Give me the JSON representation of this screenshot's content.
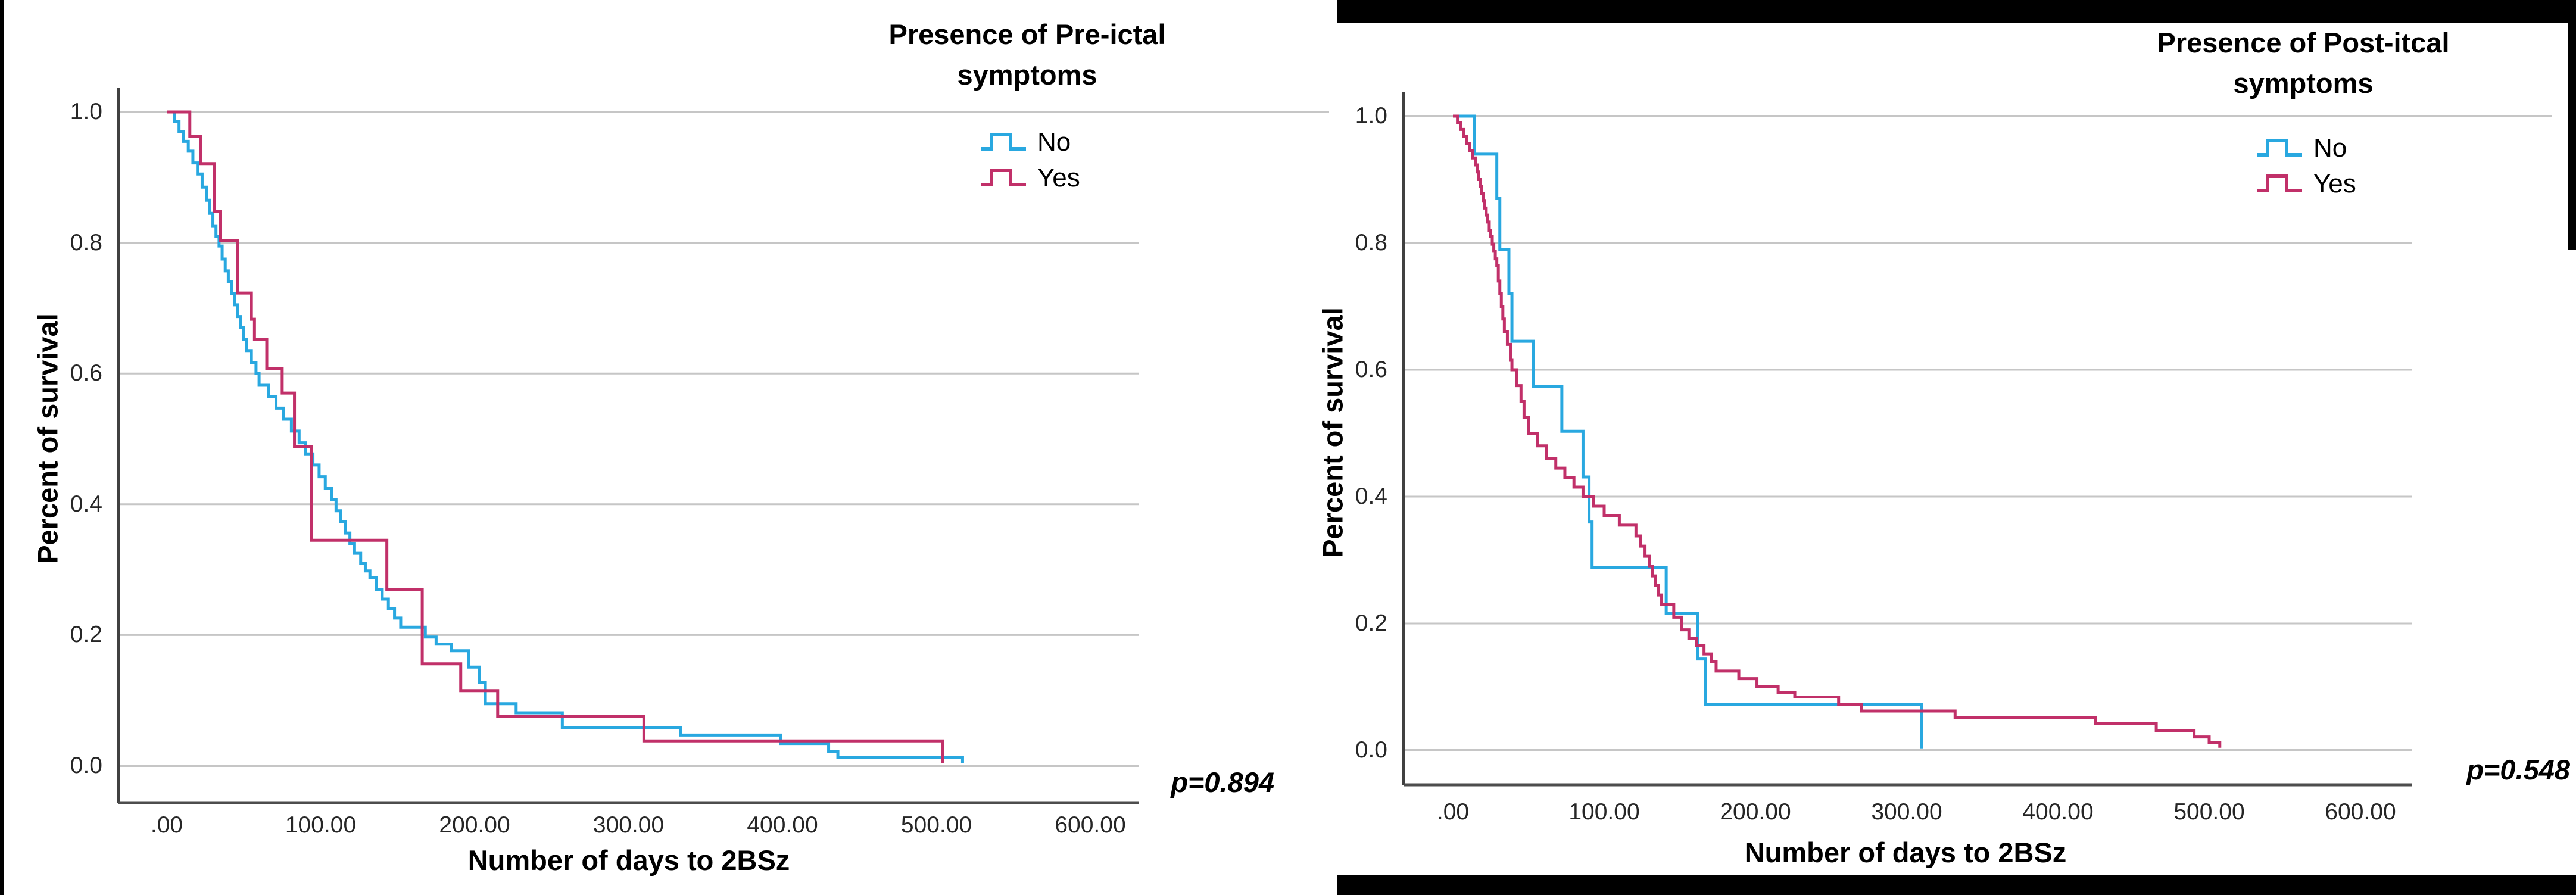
{
  "page": {
    "background": "#ffffff",
    "frame_color": "#000000"
  },
  "charts": [
    {
      "legend_title_line1": "Presence of Pre-ictal",
      "legend_title_line2": "symptoms",
      "legend_items": [
        {
          "label": "No",
          "color": "#29A8E0"
        },
        {
          "label": "Yes",
          "color": "#C13069"
        }
      ],
      "p_label": "p=0.894",
      "x_title": "Number of days to 2BSz",
      "y_title": "Percent of survival",
      "x_tick_labels": [
        ".00",
        "100.00",
        "200.00",
        "300.00",
        "400.00",
        "500.00",
        "600.00"
      ],
      "y_tick_labels": [
        "1.0",
        "0.8",
        "0.6",
        "0.4",
        "0.2",
        "0.0"
      ]
    },
    {
      "legend_title_line1": "Presence of Post-itcal",
      "legend_title_line2": "symptoms",
      "legend_items": [
        {
          "label": "No",
          "color": "#29A8E0"
        },
        {
          "label": "Yes",
          "color": "#C13069"
        }
      ],
      "p_label": "p=0.548",
      "x_title": "Number of days to 2BSz",
      "y_title": "Percent of survival",
      "x_tick_labels": [
        ".00",
        "100.00",
        "200.00",
        "300.00",
        "400.00",
        "500.00",
        "600.00"
      ],
      "y_tick_labels": [
        "1.0",
        "0.8",
        "0.6",
        "0.4",
        "0.2",
        "0.0"
      ]
    }
  ],
  "chart_data": [
    {
      "type": "line",
      "subtype": "kaplan-meier-step",
      "title": "Presence of Pre-ictal symptoms",
      "xlabel": "Number of days to 2BSz",
      "ylabel": "Percent of survival",
      "xlim": [
        0,
        660
      ],
      "ylim": [
        0.0,
        1.0
      ],
      "x_ticks": [
        0,
        100,
        200,
        300,
        400,
        500,
        600
      ],
      "y_ticks": [
        1.0,
        0.8,
        0.6,
        0.4,
        0.2,
        0.0
      ],
      "grid": true,
      "legend_position": "top-right",
      "p_value": 0.894,
      "series": [
        {
          "name": "No",
          "color": "#29A8E0",
          "points": [
            [
              0,
              1.0
            ],
            [
              5,
              0.985
            ],
            [
              8,
              0.97
            ],
            [
              11,
              0.955
            ],
            [
              14,
              0.94
            ],
            [
              17,
              0.922
            ],
            [
              20,
              0.905
            ],
            [
              23,
              0.885
            ],
            [
              26,
              0.865
            ],
            [
              28,
              0.845
            ],
            [
              30,
              0.825
            ],
            [
              32,
              0.81
            ],
            [
              34,
              0.795
            ],
            [
              36,
              0.775
            ],
            [
              38,
              0.757
            ],
            [
              40,
              0.74
            ],
            [
              42,
              0.722
            ],
            [
              44,
              0.705
            ],
            [
              46,
              0.687
            ],
            [
              48,
              0.67
            ],
            [
              50,
              0.652
            ],
            [
              52,
              0.635
            ],
            [
              55,
              0.617
            ],
            [
              58,
              0.6
            ],
            [
              60,
              0.582
            ],
            [
              66,
              0.565
            ],
            [
              71,
              0.547
            ],
            [
              76,
              0.53
            ],
            [
              81,
              0.512
            ],
            [
              86,
              0.494
            ],
            [
              90,
              0.477
            ],
            [
              95,
              0.46
            ],
            [
              99,
              0.442
            ],
            [
              103,
              0.424
            ],
            [
              107,
              0.407
            ],
            [
              110,
              0.39
            ],
            [
              113,
              0.373
            ],
            [
              116,
              0.356
            ],
            [
              119,
              0.34
            ],
            [
              122,
              0.325
            ],
            [
              126,
              0.31
            ],
            [
              129,
              0.298
            ],
            [
              132,
              0.288
            ],
            [
              136,
              0.27
            ],
            [
              140,
              0.255
            ],
            [
              144,
              0.24
            ],
            [
              148,
              0.226
            ],
            [
              152,
              0.212
            ],
            [
              168,
              0.197
            ],
            [
              175,
              0.186
            ],
            [
              185,
              0.176
            ],
            [
              196,
              0.151
            ],
            [
              203,
              0.128
            ],
            [
              207,
              0.095
            ],
            [
              227,
              0.081
            ],
            [
              257,
              0.058
            ],
            [
              334,
              0.047
            ],
            [
              399,
              0.034
            ],
            [
              430,
              0.022
            ],
            [
              436,
              0.013
            ],
            [
              517,
              0.004
            ]
          ]
        },
        {
          "name": "Yes",
          "color": "#C13069",
          "points": [
            [
              0,
              1.0
            ],
            [
              15,
              0.963
            ],
            [
              22,
              0.921
            ],
            [
              31,
              0.848
            ],
            [
              35,
              0.803
            ],
            [
              46,
              0.723
            ],
            [
              55,
              0.683
            ],
            [
              57,
              0.652
            ],
            [
              65,
              0.607
            ],
            [
              75,
              0.57
            ],
            [
              83,
              0.488
            ],
            [
              94,
              0.345
            ],
            [
              143,
              0.27
            ],
            [
              166,
              0.156
            ],
            [
              191,
              0.115
            ],
            [
              215,
              0.076
            ],
            [
              310,
              0.038
            ],
            [
              504,
              0.004
            ]
          ]
        }
      ]
    },
    {
      "type": "line",
      "subtype": "kaplan-meier-step",
      "title": "Presence of Post-itcal symptoms",
      "xlabel": "Number of days to 2BSz",
      "ylabel": "Percent of survival",
      "xlim": [
        0,
        660
      ],
      "ylim": [
        0.0,
        1.0
      ],
      "x_ticks": [
        0,
        100,
        200,
        300,
        400,
        500,
        600
      ],
      "y_ticks": [
        1.0,
        0.8,
        0.6,
        0.4,
        0.2,
        0.0
      ],
      "grid": true,
      "legend_position": "top-right",
      "p_value": 0.548,
      "series": [
        {
          "name": "No",
          "color": "#29A8E0",
          "points": [
            [
              0,
              1.0
            ],
            [
              14,
              0.94
            ],
            [
              29,
              0.87
            ],
            [
              31,
              0.79
            ],
            [
              37,
              0.72
            ],
            [
              39,
              0.645
            ],
            [
              53,
              0.574
            ],
            [
              72,
              0.503
            ],
            [
              86,
              0.431
            ],
            [
              90,
              0.36
            ],
            [
              92,
              0.288
            ],
            [
              141,
              0.216
            ],
            [
              162,
              0.144
            ],
            [
              167,
              0.072
            ],
            [
              310,
              0.003
            ]
          ]
        },
        {
          "name": "Yes",
          "color": "#C13069",
          "points": [
            [
              0,
              1.0
            ],
            [
              3,
              0.99
            ],
            [
              5,
              0.979
            ],
            [
              7,
              0.968
            ],
            [
              9,
              0.957
            ],
            [
              11,
              0.946
            ],
            [
              13,
              0.934
            ],
            [
              15,
              0.923
            ],
            [
              16,
              0.912
            ],
            [
              17,
              0.9
            ],
            [
              18,
              0.889
            ],
            [
              19,
              0.878
            ],
            [
              20,
              0.866
            ],
            [
              21,
              0.855
            ],
            [
              22,
              0.844
            ],
            [
              23,
              0.833
            ],
            [
              24,
              0.82
            ],
            [
              25,
              0.81
            ],
            [
              26,
              0.798
            ],
            [
              27,
              0.787
            ],
            [
              28,
              0.775
            ],
            [
              29,
              0.764
            ],
            [
              30,
              0.74
            ],
            [
              31,
              0.72
            ],
            [
              32,
              0.7
            ],
            [
              33,
              0.68
            ],
            [
              34,
              0.66
            ],
            [
              36,
              0.64
            ],
            [
              38,
              0.615
            ],
            [
              39,
              0.6
            ],
            [
              42,
              0.575
            ],
            [
              45,
              0.55
            ],
            [
              47,
              0.525
            ],
            [
              50,
              0.5
            ],
            [
              56,
              0.48
            ],
            [
              62,
              0.46
            ],
            [
              68,
              0.445
            ],
            [
              74,
              0.43
            ],
            [
              80,
              0.415
            ],
            [
              86,
              0.4
            ],
            [
              93,
              0.385
            ],
            [
              100,
              0.37
            ],
            [
              110,
              0.355
            ],
            [
              121,
              0.338
            ],
            [
              124,
              0.322
            ],
            [
              127,
              0.306
            ],
            [
              130,
              0.29
            ],
            [
              132,
              0.275
            ],
            [
              134,
              0.26
            ],
            [
              136,
              0.245
            ],
            [
              138,
              0.23
            ],
            [
              146,
              0.21
            ],
            [
              151,
              0.19
            ],
            [
              156,
              0.177
            ],
            [
              161,
              0.165
            ],
            [
              166,
              0.152
            ],
            [
              171,
              0.14
            ],
            [
              174,
              0.125
            ],
            [
              189,
              0.113
            ],
            [
              201,
              0.1
            ],
            [
              215,
              0.091
            ],
            [
              226,
              0.084
            ],
            [
              255,
              0.072
            ],
            [
              270,
              0.062
            ],
            [
              332,
              0.052
            ],
            [
              425,
              0.042
            ],
            [
              465,
              0.031
            ],
            [
              490,
              0.021
            ],
            [
              500,
              0.012
            ],
            [
              507,
              0.004
            ]
          ]
        }
      ]
    }
  ]
}
